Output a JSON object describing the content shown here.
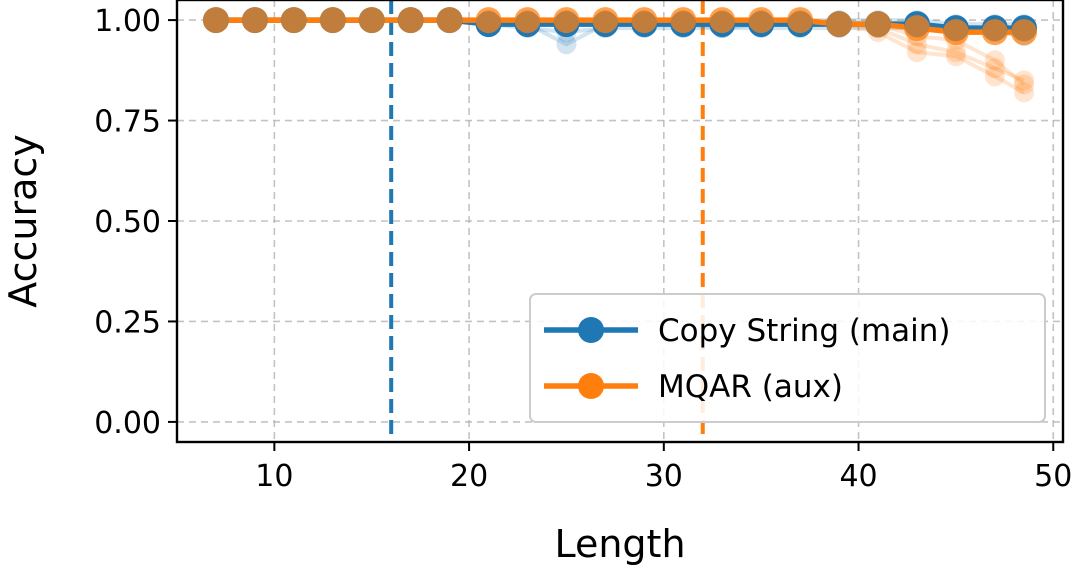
{
  "chart_data": {
    "type": "line",
    "xlabel": "Length",
    "ylabel": "Accuracy",
    "xlim": [
      5,
      50.5
    ],
    "ylim": [
      -0.05,
      1.05
    ],
    "xticks": [
      10,
      20,
      30,
      40,
      50
    ],
    "yticks": [
      0.0,
      0.25,
      0.5,
      0.75,
      1.0
    ],
    "ytick_labels": [
      "0.00",
      "0.25",
      "0.50",
      "0.75",
      "1.00"
    ],
    "grid": true,
    "legend_position": "lower-right",
    "x": [
      7,
      9,
      11,
      13,
      15,
      17,
      19,
      21,
      23,
      25,
      27,
      29,
      31,
      33,
      35,
      37,
      39,
      41,
      43,
      45,
      47,
      48.5
    ],
    "vlines": [
      {
        "x": 16,
        "color": "#1f77b4"
      },
      {
        "x": 32,
        "color": "#ff7f0e"
      }
    ],
    "series": [
      {
        "name": "Copy String (main)",
        "color": "#1f77b4",
        "values": [
          1.0,
          1.0,
          1.0,
          1.0,
          1.0,
          1.0,
          1.0,
          0.99,
          0.99,
          0.99,
          0.99,
          0.99,
          0.99,
          0.99,
          0.99,
          0.99,
          0.99,
          0.99,
          0.99,
          0.98,
          0.98,
          0.98
        ],
        "runs": [
          [
            1.0,
            1.0,
            1.0,
            1.0,
            1.0,
            1.0,
            1.0,
            0.99,
            0.99,
            0.94,
            0.99,
            0.99,
            0.99,
            0.98,
            0.99,
            0.99,
            0.99,
            0.99,
            0.99,
            0.98,
            0.97,
            0.96
          ],
          [
            1.0,
            1.0,
            1.0,
            1.0,
            1.0,
            1.0,
            1.0,
            0.99,
            0.98,
            0.97,
            0.98,
            0.98,
            0.98,
            0.98,
            0.98,
            0.98,
            0.98,
            0.98,
            0.98,
            0.97,
            0.97,
            0.97
          ],
          [
            1.0,
            1.0,
            1.0,
            1.0,
            1.0,
            1.0,
            1.0,
            1.0,
            1.0,
            1.0,
            1.0,
            1.0,
            1.0,
            1.0,
            1.0,
            1.0,
            1.0,
            1.0,
            1.0,
            0.99,
            0.99,
            0.99
          ]
        ]
      },
      {
        "name": "MQAR (aux)",
        "color": "#ff7f0e",
        "values": [
          1.0,
          1.0,
          1.0,
          1.0,
          1.0,
          1.0,
          1.0,
          1.0,
          1.0,
          1.0,
          1.0,
          1.0,
          1.0,
          1.0,
          1.0,
          1.0,
          0.99,
          0.99,
          0.98,
          0.97,
          0.97,
          0.97
        ],
        "runs": [
          [
            1.0,
            1.0,
            1.0,
            1.0,
            1.0,
            1.0,
            1.0,
            1.0,
            1.0,
            1.0,
            1.0,
            1.0,
            1.0,
            1.0,
            1.0,
            1.0,
            0.99,
            0.98,
            0.94,
            0.92,
            0.88,
            0.85
          ],
          [
            1.0,
            1.0,
            1.0,
            1.0,
            1.0,
            1.0,
            1.0,
            1.0,
            1.0,
            1.0,
            1.0,
            1.0,
            1.0,
            1.0,
            1.0,
            1.0,
            0.99,
            0.97,
            0.92,
            0.91,
            0.86,
            0.82
          ],
          [
            1.0,
            1.0,
            1.0,
            1.0,
            1.0,
            1.0,
            1.0,
            1.0,
            1.0,
            1.0,
            1.0,
            1.0,
            1.0,
            1.0,
            1.0,
            1.0,
            0.99,
            0.99,
            0.96,
            0.95,
            0.9,
            0.84
          ]
        ]
      }
    ]
  }
}
